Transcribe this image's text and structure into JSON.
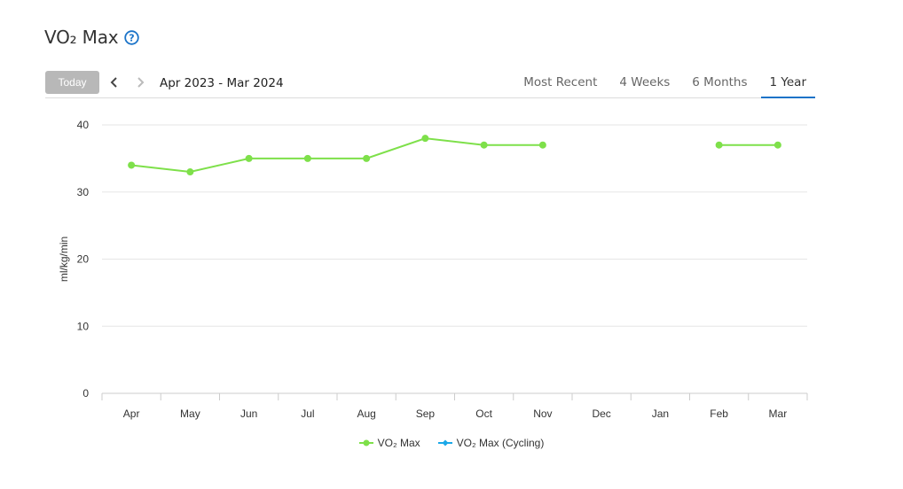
{
  "header": {
    "title": "VO₂ Max",
    "help_icon": "question-circle-icon"
  },
  "toolbar": {
    "today_label": "Today",
    "prev_icon": "chevron-left-icon",
    "next_icon": "chevron-right-icon",
    "date_range": "Apr 2023 - Mar 2024",
    "tabs": [
      {
        "label": "Most Recent",
        "active": false
      },
      {
        "label": "4 Weeks",
        "active": false
      },
      {
        "label": "6 Months",
        "active": false
      },
      {
        "label": "1 Year",
        "active": true
      }
    ]
  },
  "colors": {
    "accent": "#1a73c8",
    "series_vo2": "#7ee04a",
    "series_cycling": "#1ba8e8",
    "grid": "#e6e6e6"
  },
  "chart_data": {
    "type": "line",
    "title": "",
    "xlabel": "",
    "ylabel": "ml/kg/min",
    "ylim": [
      0,
      40
    ],
    "yticks": [
      0,
      10,
      20,
      30,
      40
    ],
    "grid": true,
    "legend_position": "bottom",
    "categories": [
      "Apr",
      "May",
      "Jun",
      "Jul",
      "Aug",
      "Sep",
      "Oct",
      "Nov",
      "Dec",
      "Jan",
      "Feb",
      "Mar"
    ],
    "series": [
      {
        "name": "VO₂ Max",
        "color": "#7ee04a",
        "values": [
          34,
          33,
          35,
          35,
          35,
          38,
          37,
          37,
          null,
          null,
          37,
          37
        ]
      },
      {
        "name": "VO₂ Max (Cycling)",
        "color": "#1ba8e8",
        "values": [
          null,
          null,
          null,
          null,
          null,
          null,
          null,
          null,
          null,
          null,
          null,
          null
        ]
      }
    ]
  }
}
